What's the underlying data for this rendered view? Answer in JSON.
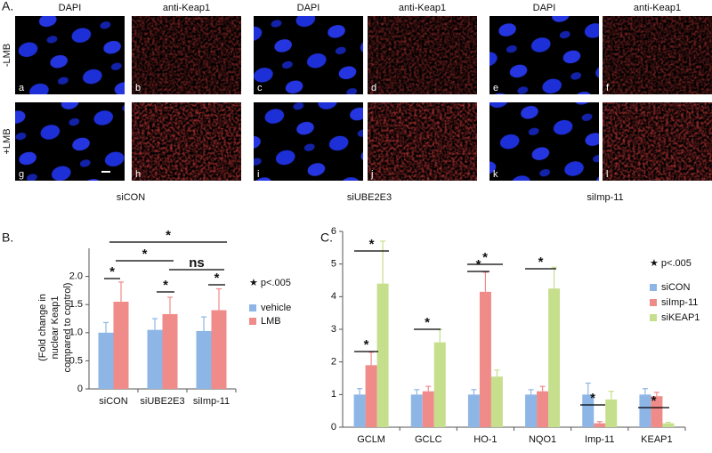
{
  "panel_a": {
    "label": "A.",
    "columns": [
      "DAPI",
      "anti-Keap1",
      "DAPI",
      "anti-Keap1",
      "DAPI",
      "anti-Keap1"
    ],
    "rows": [
      "-LMB",
      "+LMB"
    ],
    "panel_letters": [
      "a",
      "b",
      "c",
      "d",
      "e",
      "f",
      "g",
      "h",
      "i",
      "j",
      "k",
      "l"
    ],
    "groups": [
      "siCON",
      "siUBE2E3",
      "siImp-11"
    ]
  },
  "chart_data": [
    {
      "type": "bar",
      "panel_label": "B.",
      "y_label": "(Fold change in nuclear Keap1 compared to control)",
      "categories": [
        "siCON",
        "siUBE2E3",
        "siImp-11"
      ],
      "series": [
        {
          "name": "vehicle",
          "color": "#8db6e6",
          "values": [
            1.0,
            1.05,
            1.03
          ],
          "errors": [
            0.18,
            0.2,
            0.25
          ]
        },
        {
          "name": "LMB",
          "color": "#ef8b89",
          "values": [
            1.55,
            1.33,
            1.4
          ],
          "errors": [
            0.35,
            0.3,
            0.38
          ]
        }
      ],
      "ylim": [
        0,
        2.5
      ],
      "yticks": [
        0,
        0.5,
        {
          "value": 1,
          "label": "1.0"
        },
        1.5,
        {
          "value": 2,
          "label": "2.0"
        }
      ],
      "significance": [
        "*",
        "*",
        "*",
        "*",
        "ns",
        "*"
      ],
      "note": "★ p<.005"
    },
    {
      "type": "bar",
      "panel_label": "C.",
      "categories": [
        "GCLM",
        "GCLC",
        "HO-1",
        "NQO1",
        "Imp-11",
        "KEAP1"
      ],
      "series": [
        {
          "name": "siCON",
          "color": "#8db6e6",
          "values": [
            1,
            1,
            1,
            1,
            1,
            1
          ],
          "errors": [
            0.18,
            0.15,
            0.15,
            0.15,
            0.35,
            0.18
          ]
        },
        {
          "name": "siImp-11",
          "color": "#ef8b89",
          "values": [
            1.9,
            1.1,
            4.15,
            1.1,
            0.12,
            0.95
          ],
          "errors": [
            0.4,
            0.15,
            0.6,
            0.15,
            0.05,
            0.12
          ]
        },
        {
          "name": "siKEAP1",
          "color": "#c6df8c",
          "values": [
            4.4,
            2.6,
            1.55,
            4.25,
            0.85,
            0.12
          ],
          "errors": [
            1.3,
            0.4,
            0.2,
            0.65,
            0.25,
            0.03
          ]
        }
      ],
      "ylim": [
        0,
        6
      ],
      "yticks": [
        0,
        1,
        2,
        3,
        4,
        5,
        6
      ],
      "significance": [
        "*",
        "*",
        "*",
        "*",
        "*",
        "*",
        "*",
        "*"
      ],
      "note": "★ p<.005"
    }
  ]
}
